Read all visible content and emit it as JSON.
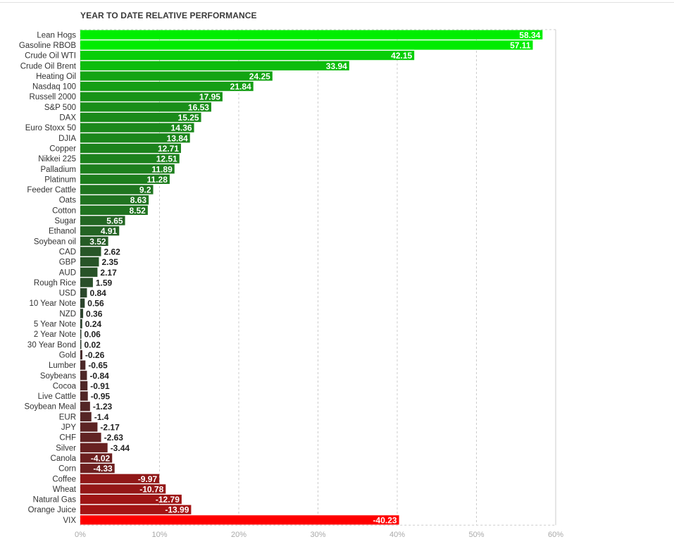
{
  "chart_data": {
    "type": "bar",
    "orientation": "horizontal",
    "title": "YEAR TO DATE RELATIVE PERFORMANCE",
    "xlabel": "",
    "ylabel": "",
    "xlim": [
      0,
      60
    ],
    "x_ticks": [
      0,
      10,
      20,
      30,
      40,
      50,
      60
    ],
    "x_tick_labels": [
      "0%",
      "10%",
      "20%",
      "30%",
      "40%",
      "50%",
      "60%"
    ],
    "grid": true,
    "bar_value_mode": "absolute",
    "categories": [
      "Lean Hogs",
      "Gasoline RBOB",
      "Crude Oil WTI",
      "Crude Oil Brent",
      "Heating Oil",
      "Nasdaq 100",
      "Russell 2000",
      "S&P 500",
      "DAX",
      "Euro Stoxx 50",
      "DJIA",
      "Copper",
      "Nikkei 225",
      "Palladium",
      "Platinum",
      "Feeder Cattle",
      "Oats",
      "Cotton",
      "Sugar",
      "Ethanol",
      "Soybean oil",
      "CAD",
      "GBP",
      "AUD",
      "Rough Rice",
      "USD",
      "10 Year Note",
      "NZD",
      "5 Year Note",
      "2 Year Note",
      "30 Year Bond",
      "Gold",
      "Lumber",
      "Soybeans",
      "Cocoa",
      "Live Cattle",
      "Soybean Meal",
      "EUR",
      "JPY",
      "CHF",
      "Silver",
      "Canola",
      "Corn",
      "Coffee",
      "Wheat",
      "Natural Gas",
      "Orange Juice",
      "VIX"
    ],
    "values": [
      58.34,
      57.11,
      42.15,
      33.94,
      24.25,
      21.84,
      17.95,
      16.53,
      15.25,
      14.36,
      13.84,
      12.71,
      12.51,
      11.89,
      11.28,
      9.2,
      8.63,
      8.52,
      5.65,
      4.91,
      3.52,
      2.62,
      2.35,
      2.17,
      1.59,
      0.84,
      0.56,
      0.36,
      0.24,
      0.06,
      0.02,
      -0.26,
      -0.65,
      -0.84,
      -0.91,
      -0.95,
      -1.23,
      -1.4,
      -2.17,
      -2.63,
      -3.44,
      -4.02,
      -4.33,
      -9.97,
      -10.78,
      -12.79,
      -13.99,
      -40.23
    ],
    "value_labels": [
      "58.34",
      "57.11",
      "42.15",
      "33.94",
      "24.25",
      "21.84",
      "17.95",
      "16.53",
      "15.25",
      "14.36",
      "13.84",
      "12.71",
      "12.51",
      "11.89",
      "11.28",
      "9.2",
      "8.63",
      "8.52",
      "5.65",
      "4.91",
      "3.52",
      "2.62",
      "2.35",
      "2.17",
      "1.59",
      "0.84",
      "0.56",
      "0.36",
      "0.24",
      "0.06",
      "0.02",
      "-0.26",
      "-0.65",
      "-0.84",
      "-0.91",
      "-0.95",
      "-1.23",
      "-1.4",
      "-2.17",
      "-2.63",
      "-3.44",
      "-4.02",
      "-4.33",
      "-9.97",
      "-10.78",
      "-12.79",
      "-13.99",
      "-40.23"
    ],
    "colors": {
      "positive_strong": "#00ee00",
      "positive_weak": "#2f3a2f",
      "negative_weak": "#3b2b2b",
      "negative_strong": "#ff0000",
      "grid": "#cccccc",
      "tick_label": "#a9a9a9",
      "category_label": "#333333"
    }
  }
}
